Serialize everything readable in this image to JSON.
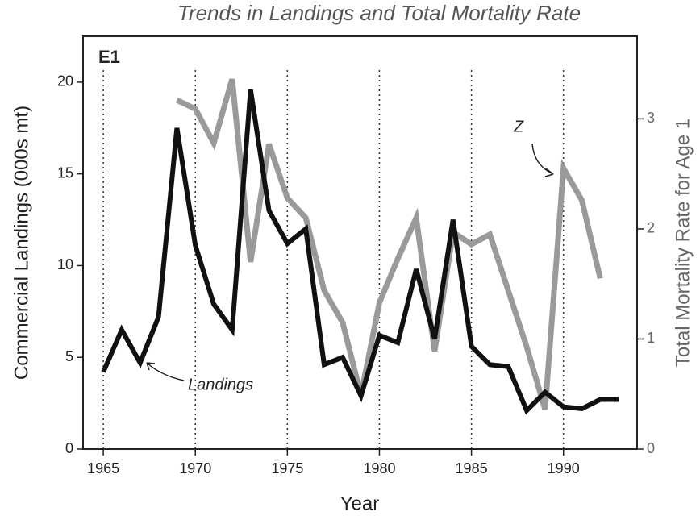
{
  "chart_data": {
    "type": "line",
    "title": "Trends in Landings and Total Mortality Rate",
    "panel_label": "E1",
    "xlabel": "Year",
    "ylabel": "Commercial Landings (000s mt)",
    "y2label": "Total Mortality Rate for Age 1",
    "x": [
      1965,
      1966,
      1967,
      1968,
      1969,
      1970,
      1971,
      1972,
      1973,
      1974,
      1975,
      1976,
      1977,
      1978,
      1979,
      1980,
      1981,
      1982,
      1983,
      1984,
      1985,
      1986,
      1987,
      1988,
      1989,
      1990,
      1991,
      1992,
      1993
    ],
    "series": [
      {
        "name": "Landings",
        "color": "#111111",
        "values": [
          4.2,
          6.5,
          4.7,
          7.2,
          17.5,
          11.1,
          7.9,
          6.5,
          19.6,
          13,
          11.2,
          12,
          4.6,
          5,
          2.9,
          6.2,
          5.8,
          9.8,
          6,
          12.5,
          5.6,
          4.6,
          4.5,
          2.1,
          3.1,
          2.3,
          2.2,
          2.7,
          2.7
        ]
      },
      {
        "name": "Z",
        "color": "#9a9a9a",
        "axis": "y2",
        "values": [
          null,
          null,
          null,
          null,
          3.17,
          3.09,
          2.78,
          3.36,
          1.7,
          2.77,
          2.28,
          2.1,
          1.44,
          1.15,
          0.49,
          1.33,
          1.73,
          2.1,
          0.89,
          1.97,
          1.86,
          1.95,
          1.44,
          0.93,
          0.36,
          2.55,
          2.26,
          1.55,
          null
        ]
      }
    ],
    "xlim": [
      1963.9,
      1994
    ],
    "xticks": [
      1965,
      1970,
      1975,
      1980,
      1985,
      1990
    ],
    "ylim": [
      0,
      22.5
    ],
    "yticks": [
      0,
      5,
      10,
      15,
      20
    ],
    "y2lim": [
      0,
      3.75
    ],
    "y2ticks": [
      0,
      1,
      2,
      3
    ],
    "grid": "x"
  }
}
